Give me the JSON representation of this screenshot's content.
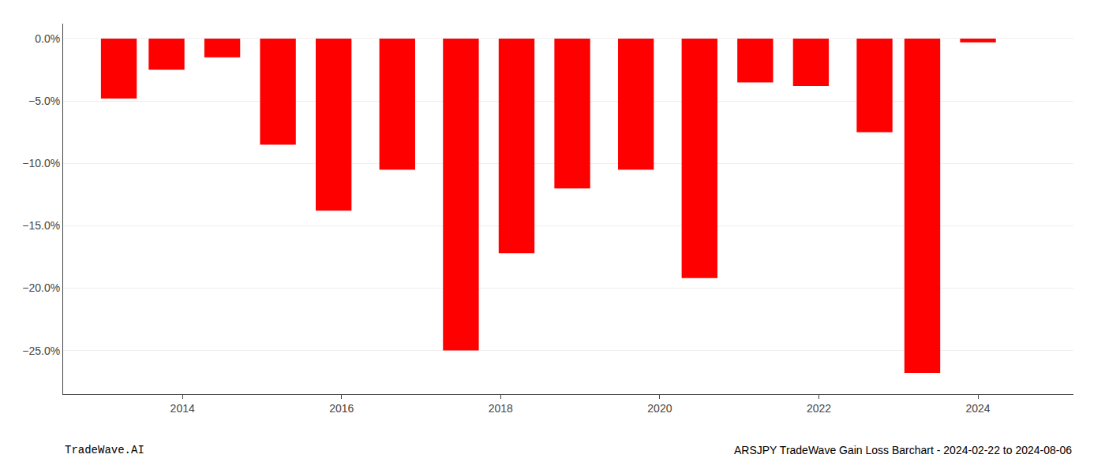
{
  "chart_data": {
    "type": "bar",
    "x": [
      2013.2,
      2013.8,
      2014.5,
      2015.2,
      2015.9,
      2016.7,
      2017.5,
      2018.2,
      2018.9,
      2019.7,
      2020.5,
      2021.2,
      2021.9,
      2022.7,
      2023.3,
      2024.0
    ],
    "values": [
      -4.8,
      -2.5,
      -1.5,
      -8.5,
      -13.8,
      -10.5,
      -25.0,
      -17.2,
      -12.0,
      -10.5,
      -19.2,
      -3.5,
      -3.8,
      -7.5,
      -26.8,
      -0.3
    ],
    "color": "#ff0000",
    "xlim": [
      2012.5,
      2025.2
    ],
    "xticks": [
      2014,
      2016,
      2018,
      2020,
      2022,
      2024
    ],
    "ylim": [
      -28.5,
      1.2
    ],
    "yticks": [
      {
        "value": 0.0,
        "label": "0.0%"
      },
      {
        "value": -5.0,
        "label": "−5.0%"
      },
      {
        "value": -10.0,
        "label": "−10.0%"
      },
      {
        "value": -15.0,
        "label": "−15.0%"
      },
      {
        "value": -20.0,
        "label": "−20.0%"
      },
      {
        "value": -25.0,
        "label": "−25.0%"
      }
    ],
    "grid": true,
    "annotations": [
      "TradeWave.AI",
      "ARSJPY TradeWave Gain Loss Barchart - 2024-02-22 to 2024-08-06"
    ]
  }
}
